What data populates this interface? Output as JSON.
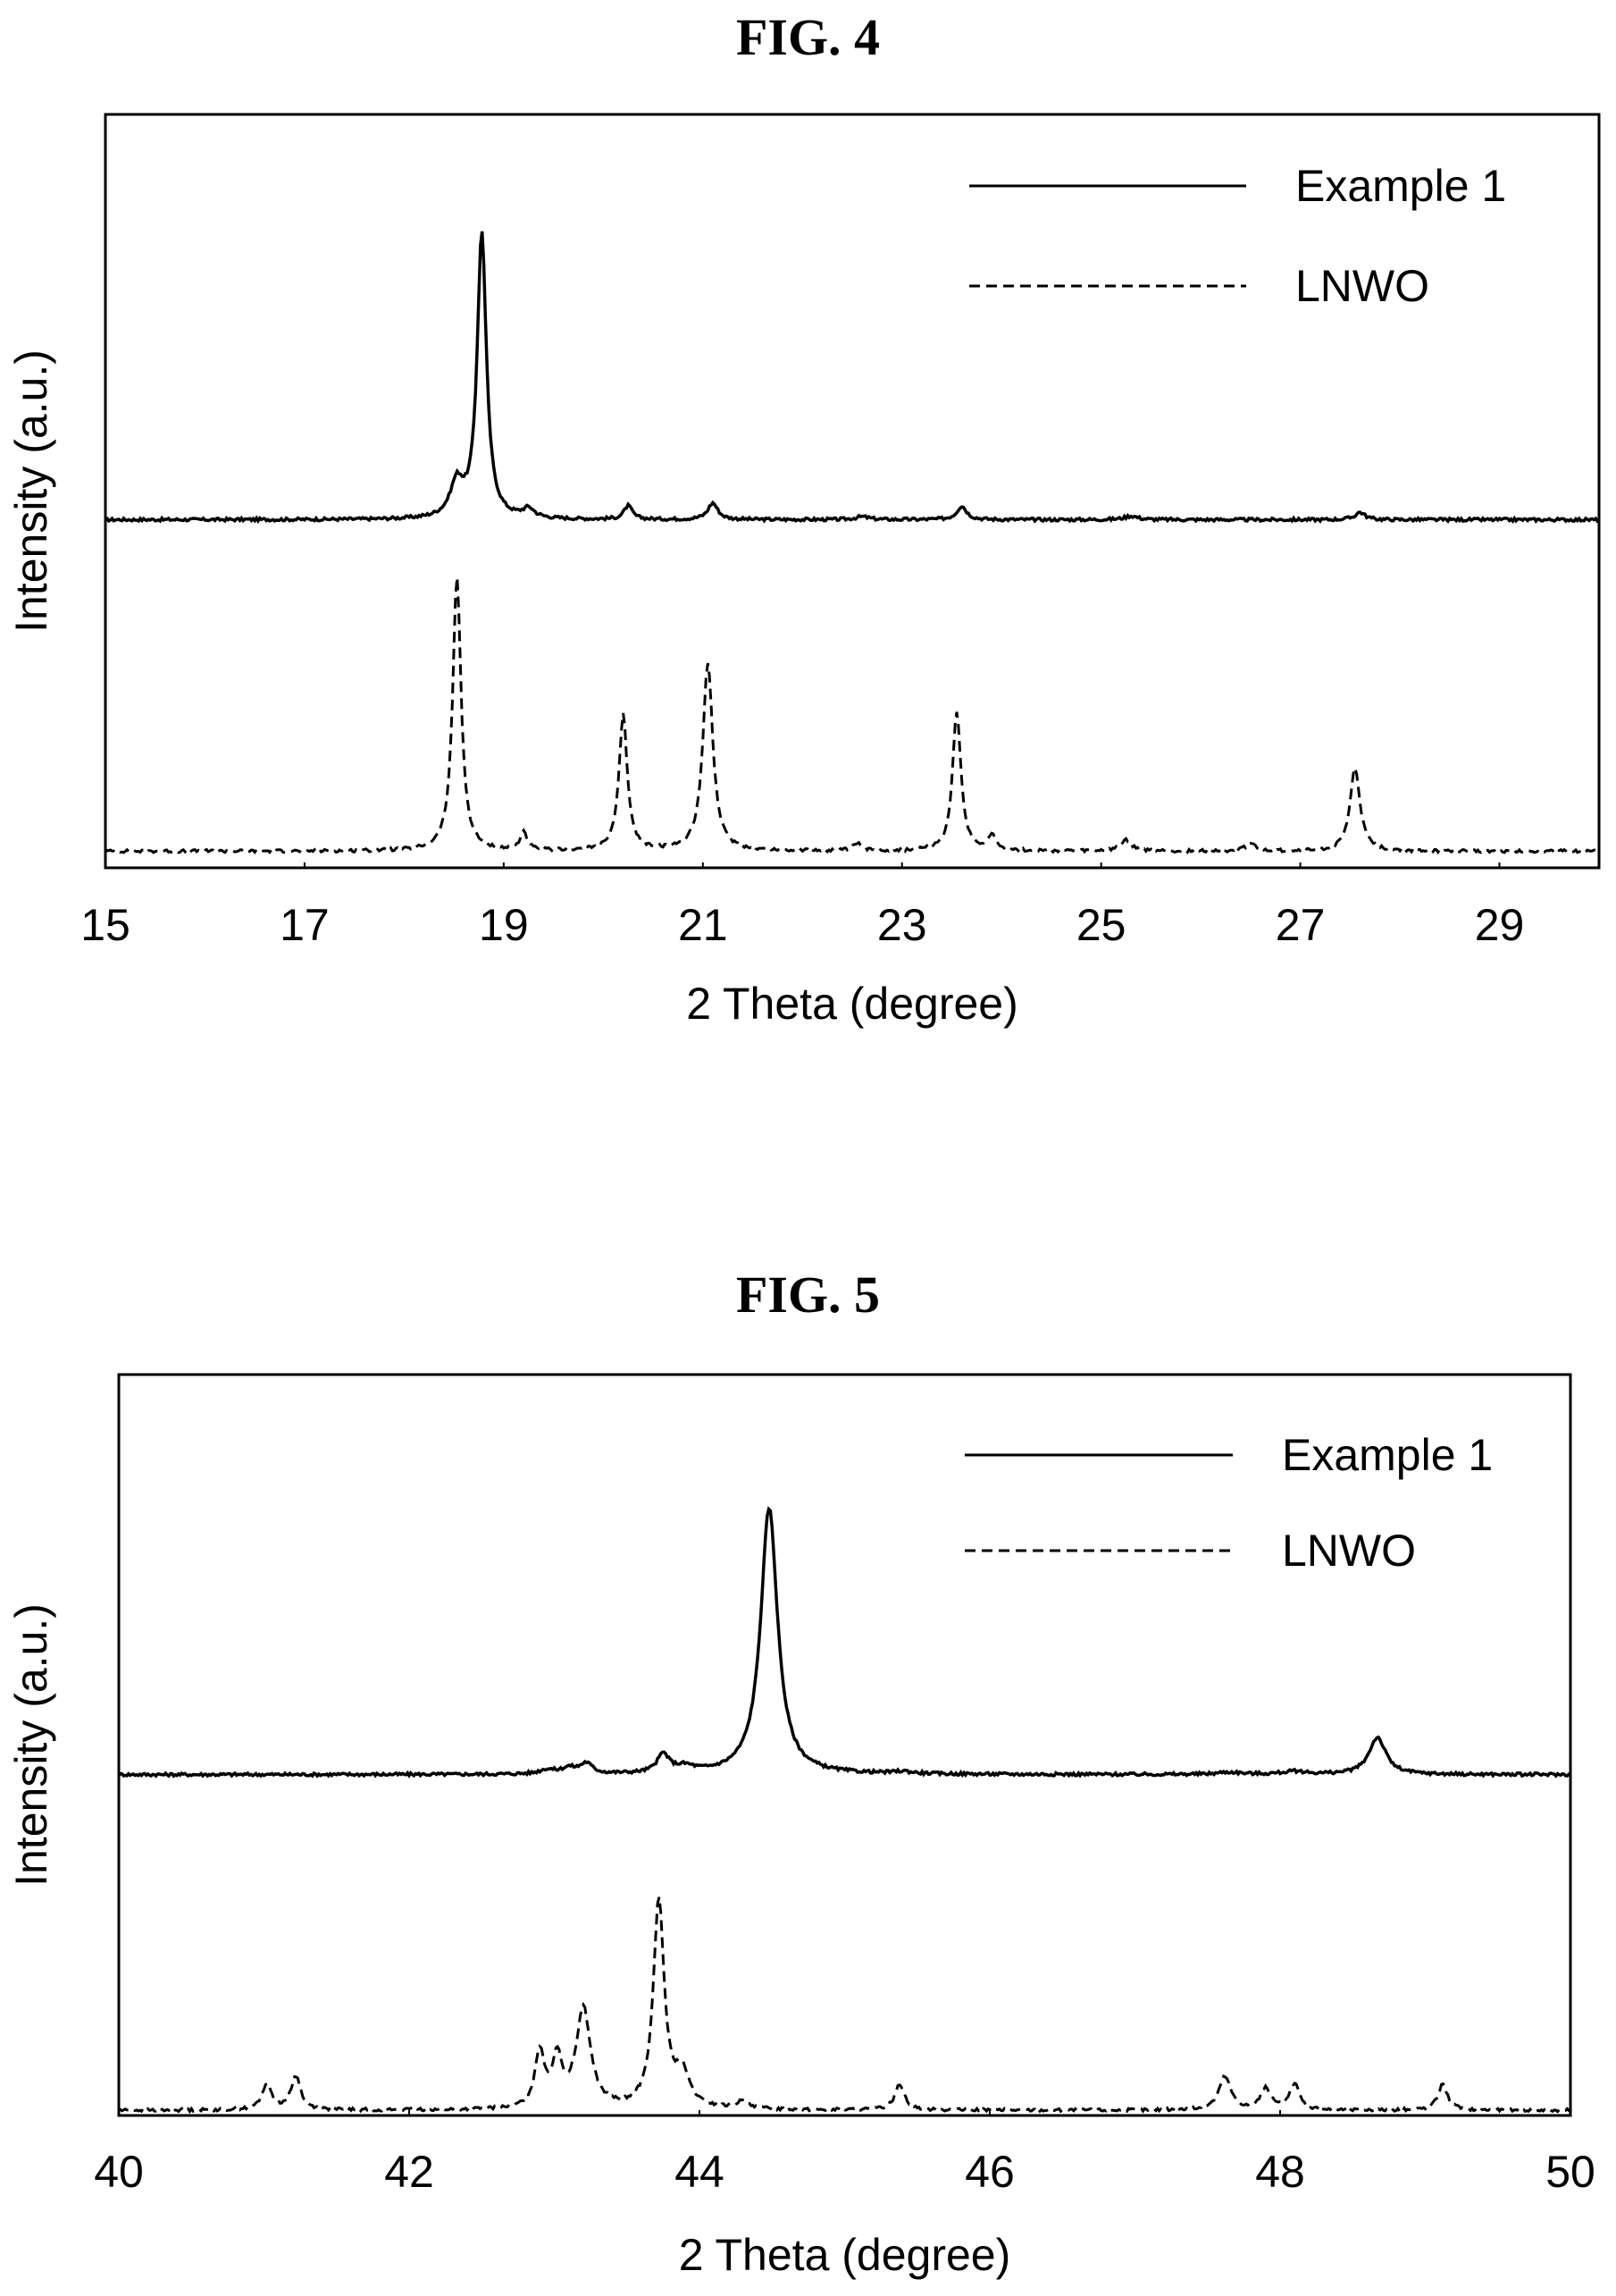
{
  "chart_data": [
    {
      "type": "line",
      "title": "FIG. 4",
      "xlabel": "2 Theta (degree)",
      "ylabel": "Intensity (a.u.)",
      "xlim": [
        15,
        30
      ],
      "ylim": [
        0,
        10
      ],
      "xticks": [
        "15",
        "17",
        "19",
        "21",
        "23",
        "25",
        "27",
        "29"
      ],
      "xtick_values": [
        15,
        17,
        19,
        21,
        23,
        25,
        27,
        29
      ],
      "grid": false,
      "legend_position": "top-right",
      "series": [
        {
          "name": "Example 1",
          "style": "solid",
          "baseline": 4.62,
          "peaks": [
            [
              18.53,
              0.45,
              0.08
            ],
            [
              18.78,
              3.8,
              0.055
            ],
            [
              19.25,
              0.12,
              0.07
            ],
            [
              20.25,
              0.18,
              0.05
            ],
            [
              21.1,
              0.22,
              0.06
            ],
            [
              22.6,
              0.04,
              0.08
            ],
            [
              23.6,
              0.18,
              0.06
            ],
            [
              25.3,
              0.05,
              0.08
            ],
            [
              27.6,
              0.1,
              0.06
            ]
          ]
        },
        {
          "name": "LNWO",
          "style": "dashed",
          "baseline": 0.22,
          "peaks": [
            [
              18.53,
              3.65,
              0.05
            ],
            [
              19.2,
              0.25,
              0.04
            ],
            [
              20.2,
              1.8,
              0.05
            ],
            [
              21.05,
              2.5,
              0.06
            ],
            [
              22.55,
              0.1,
              0.05
            ],
            [
              23.55,
              1.85,
              0.05
            ],
            [
              23.9,
              0.2,
              0.05
            ],
            [
              25.25,
              0.15,
              0.06
            ],
            [
              26.5,
              0.1,
              0.06
            ],
            [
              27.55,
              1.1,
              0.06
            ]
          ]
        }
      ]
    },
    {
      "type": "line",
      "title": "FIG. 5",
      "xlabel": "2 Theta (degree)",
      "ylabel": "Intensity (a.u.)",
      "xlim": [
        40,
        50
      ],
      "ylim": [
        0,
        10
      ],
      "xticks": [
        "40",
        "42",
        "44",
        "46",
        "48",
        "50"
      ],
      "xtick_values": [
        40,
        42,
        44,
        46,
        48,
        50
      ],
      "grid": false,
      "legend_position": "top-right",
      "series": [
        {
          "name": "Example 1",
          "style": "solid",
          "baseline": 4.6,
          "peaks": [
            [
              42.95,
              0.06,
              0.06
            ],
            [
              43.1,
              0.08,
              0.06
            ],
            [
              43.22,
              0.14,
              0.05
            ],
            [
              43.75,
              0.25,
              0.05
            ],
            [
              43.9,
              0.08,
              0.08
            ],
            [
              44.48,
              3.6,
              0.07
            ],
            [
              45.4,
              0.03,
              0.08
            ],
            [
              47.65,
              0.03,
              0.1
            ],
            [
              48.1,
              0.04,
              0.1
            ],
            [
              48.67,
              0.5,
              0.07
            ]
          ]
        },
        {
          "name": "LNWO",
          "style": "dashed",
          "baseline": 0.07,
          "peaks": [
            [
              41.02,
              0.35,
              0.04
            ],
            [
              41.22,
              0.45,
              0.04
            ],
            [
              42.9,
              0.75,
              0.04
            ],
            [
              43.02,
              0.65,
              0.04
            ],
            [
              43.2,
              1.35,
              0.06
            ],
            [
              43.72,
              2.8,
              0.045
            ],
            [
              43.88,
              0.45,
              0.06
            ],
            [
              44.3,
              0.1,
              0.06
            ],
            [
              45.38,
              0.35,
              0.04
            ],
            [
              47.62,
              0.45,
              0.05
            ],
            [
              47.9,
              0.3,
              0.04
            ],
            [
              48.1,
              0.35,
              0.04
            ],
            [
              49.12,
              0.35,
              0.04
            ]
          ]
        }
      ]
    }
  ]
}
